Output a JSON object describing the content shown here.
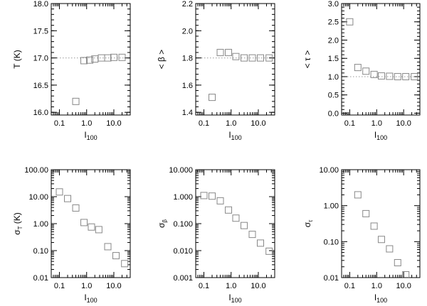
{
  "chart_data": [
    {
      "type": "scatter",
      "panel": "top-left",
      "xscale": "log",
      "yscale": "linear",
      "xlim": [
        0.05,
        40
      ],
      "ylim": [
        15.95,
        18.0
      ],
      "xticks": [
        {
          "v": 0.1,
          "label": "0.1"
        },
        {
          "v": 1,
          "label": "1.0"
        },
        {
          "v": 10,
          "label": "10.0"
        }
      ],
      "yticks": [
        {
          "v": 16.0,
          "label": "16.0"
        },
        {
          "v": 16.5,
          "label": "16.5"
        },
        {
          "v": 17.0,
          "label": "17.0"
        },
        {
          "v": 17.5,
          "label": "17.5"
        },
        {
          "v": 18.0,
          "label": "18.0"
        }
      ],
      "xlabel": "I",
      "xlabel_sub": "100",
      "ylabel": "T (K)",
      "ylabel_sub": "",
      "ref_y": 17.0,
      "x": [
        0.4,
        0.8,
        1.3,
        2.0,
        3.5,
        6.0,
        10.0,
        20.0
      ],
      "y": [
        16.2,
        16.95,
        16.96,
        16.98,
        17.0,
        17.0,
        17.01,
        17.01
      ]
    },
    {
      "type": "scatter",
      "panel": "top-middle",
      "xscale": "log",
      "yscale": "linear",
      "xlim": [
        0.05,
        40
      ],
      "ylim": [
        1.38,
        2.2
      ],
      "xticks": [
        {
          "v": 0.1,
          "label": "0.1"
        },
        {
          "v": 1,
          "label": "1.0"
        },
        {
          "v": 10,
          "label": "10.0"
        }
      ],
      "yticks": [
        {
          "v": 1.4,
          "label": "1.4"
        },
        {
          "v": 1.6,
          "label": "1.6"
        },
        {
          "v": 1.8,
          "label": "1.8"
        },
        {
          "v": 2.0,
          "label": "2.0"
        },
        {
          "v": 2.2,
          "label": "2.2"
        }
      ],
      "xlabel": "I",
      "xlabel_sub": "100",
      "ylabel": "< β >",
      "ylabel_sub": "",
      "ref_y": 1.8,
      "x": [
        0.2,
        0.4,
        0.8,
        1.5,
        3.0,
        6.0,
        12.0,
        25.0
      ],
      "y": [
        1.51,
        1.84,
        1.84,
        1.81,
        1.8,
        1.8,
        1.8,
        1.8
      ]
    },
    {
      "type": "scatter",
      "panel": "top-right",
      "xscale": "log",
      "yscale": "linear",
      "xlim": [
        0.05,
        40
      ],
      "ylim": [
        -0.05,
        3.0
      ],
      "xticks": [
        {
          "v": 0.1,
          "label": "0.1"
        },
        {
          "v": 1,
          "label": "1.0"
        },
        {
          "v": 10,
          "label": "10.0"
        }
      ],
      "yticks": [
        {
          "v": 0.0,
          "label": "0.0"
        },
        {
          "v": 0.5,
          "label": "0.5"
        },
        {
          "v": 1.0,
          "label": "1.0"
        },
        {
          "v": 1.5,
          "label": "1.5"
        },
        {
          "v": 2.0,
          "label": "2.0"
        },
        {
          "v": 2.5,
          "label": "2.5"
        },
        {
          "v": 3.0,
          "label": "3.0"
        }
      ],
      "xlabel": "I",
      "xlabel_sub": "100",
      "ylabel": "< τ >",
      "ylabel_sub": "",
      "ref_y": 1.0,
      "x": [
        0.1,
        0.2,
        0.4,
        0.8,
        1.5,
        3.0,
        6.0,
        12.0,
        25.0
      ],
      "y": [
        2.5,
        1.25,
        1.15,
        1.06,
        1.02,
        1.01,
        1.0,
        1.0,
        1.0
      ]
    },
    {
      "type": "scatter",
      "panel": "bottom-left",
      "xscale": "log",
      "yscale": "log",
      "xlim": [
        0.05,
        40
      ],
      "ylim": [
        0.01,
        100
      ],
      "xticks": [
        {
          "v": 0.1,
          "label": "0.1"
        },
        {
          "v": 1,
          "label": "1.0"
        },
        {
          "v": 10,
          "label": "10.0"
        }
      ],
      "yticks": [
        {
          "v": 0.01,
          "label": "0.01"
        },
        {
          "v": 0.1,
          "label": "0.10"
        },
        {
          "v": 1,
          "label": "1.00"
        },
        {
          "v": 10,
          "label": "10.00"
        },
        {
          "v": 100,
          "label": "100.00"
        }
      ],
      "xlabel": "I",
      "xlabel_sub": "100",
      "ylabel": "σ",
      "ylabel_sub": "T",
      "ylabel_suffix": " (K)",
      "x": [
        0.1,
        0.2,
        0.4,
        0.8,
        1.5,
        2.8,
        6.0,
        12.0,
        25.0
      ],
      "y": [
        15.0,
        8.5,
        3.8,
        1.1,
        0.75,
        0.6,
        0.14,
        0.065,
        0.033
      ]
    },
    {
      "type": "scatter",
      "panel": "bottom-middle",
      "xscale": "log",
      "yscale": "log",
      "xlim": [
        0.05,
        40
      ],
      "ylim": [
        0.001,
        10
      ],
      "xticks": [
        {
          "v": 0.1,
          "label": "0.1"
        },
        {
          "v": 1,
          "label": "1.0"
        },
        {
          "v": 10,
          "label": "10.0"
        }
      ],
      "yticks": [
        {
          "v": 0.001,
          "label": "0.001"
        },
        {
          "v": 0.01,
          "label": "0.010"
        },
        {
          "v": 0.1,
          "label": "0.100"
        },
        {
          "v": 1,
          "label": "1.000"
        },
        {
          "v": 10,
          "label": "10.000"
        }
      ],
      "xlabel": "I",
      "xlabel_sub": "100",
      "ylabel": "σ",
      "ylabel_sub": "β",
      "ylabel_suffix": "",
      "x": [
        0.1,
        0.2,
        0.4,
        0.8,
        1.5,
        3.0,
        6.0,
        12.0,
        25.0
      ],
      "y": [
        1.1,
        1.05,
        0.7,
        0.32,
        0.16,
        0.085,
        0.04,
        0.019,
        0.0095
      ]
    },
    {
      "type": "scatter",
      "panel": "bottom-right",
      "xscale": "log",
      "yscale": "log",
      "xlim": [
        0.05,
        40
      ],
      "ylim": [
        0.01,
        10
      ],
      "xticks": [
        {
          "v": 0.1,
          "label": "0.1"
        },
        {
          "v": 1,
          "label": "1.0"
        },
        {
          "v": 10,
          "label": "10.0"
        }
      ],
      "yticks": [
        {
          "v": 0.01,
          "label": "0.01"
        },
        {
          "v": 0.1,
          "label": "0.10"
        },
        {
          "v": 1,
          "label": "1.00"
        },
        {
          "v": 10,
          "label": "10.00"
        }
      ],
      "xlabel": "I",
      "xlabel_sub": "100",
      "ylabel": "σ",
      "ylabel_sub": "τ",
      "ylabel_suffix": "",
      "x": [
        0.2,
        0.4,
        0.8,
        1.5,
        3.0,
        6.0,
        12.0
      ],
      "y": [
        2.0,
        0.6,
        0.27,
        0.115,
        0.063,
        0.026,
        0.012
      ]
    }
  ]
}
